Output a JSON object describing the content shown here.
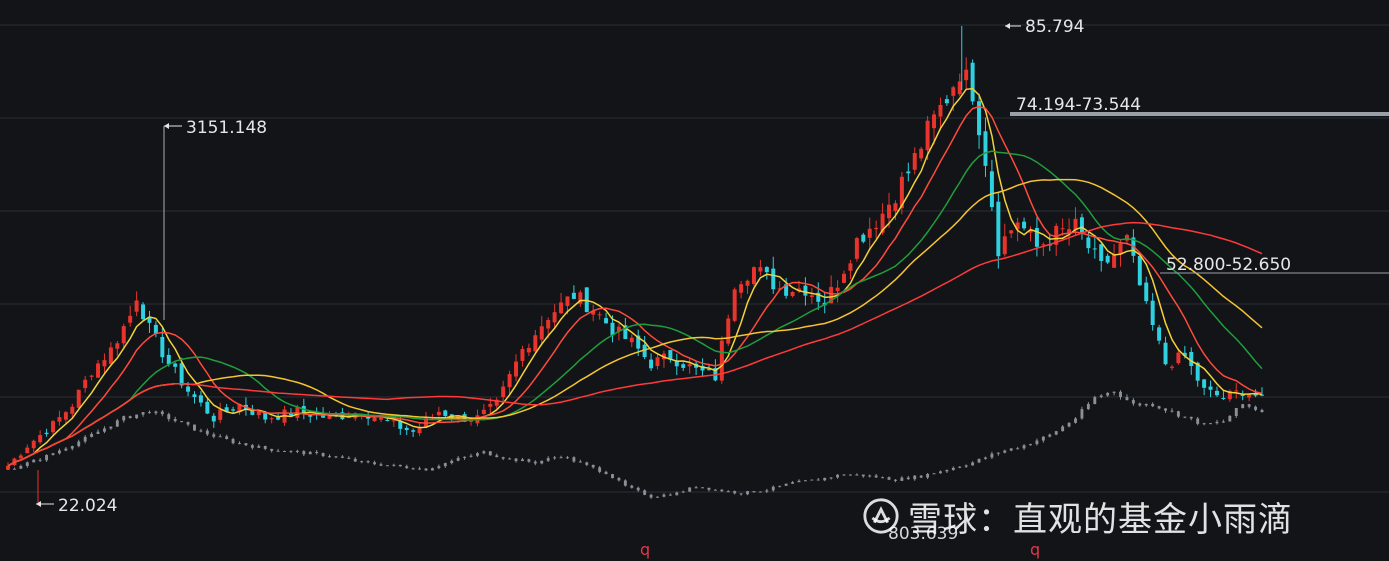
{
  "chart_data": {
    "type": "candlestick",
    "title": "",
    "xlabel": "",
    "ylabel": "",
    "grid": true,
    "colors": {
      "background": "#121418",
      "grid": "#2a2f36",
      "up": "#e8342c",
      "down": "#2fd0e0",
      "ma_yellow": "#f2d33a",
      "ma_red1": "#ff4b3c",
      "ma_green": "#1f9e3c",
      "ma_gold": "#f5c431",
      "ma_red2": "#ff3a3a",
      "benchmark": "#8a8f98",
      "label": "#e6e6e6",
      "marker": "#e6354a"
    },
    "annotations": {
      "high_label": "85.794",
      "low_label": "22.024",
      "bench_high_label": "3151.148",
      "bench_low_label": "803.639",
      "resistance_label_1": "74.194-73.544",
      "resistance_label_2": "52.800-52.650",
      "marker_1": "q",
      "marker_2": "q"
    },
    "anchors": [
      [
        0,
        23
      ],
      [
        3,
        26
      ],
      [
        7,
        29
      ],
      [
        10,
        32
      ],
      [
        13,
        37
      ],
      [
        16,
        40
      ],
      [
        19,
        45
      ],
      [
        20,
        48
      ],
      [
        22,
        43
      ],
      [
        25,
        38
      ],
      [
        28,
        34
      ],
      [
        32,
        30
      ],
      [
        36,
        32
      ],
      [
        40,
        30
      ],
      [
        45,
        31
      ],
      [
        50,
        30
      ],
      [
        55,
        31
      ],
      [
        60,
        29
      ],
      [
        63,
        28
      ],
      [
        67,
        31
      ],
      [
        70,
        30
      ],
      [
        73,
        30
      ],
      [
        76,
        32
      ],
      [
        80,
        40
      ],
      [
        84,
        45
      ],
      [
        88,
        48
      ],
      [
        91,
        46
      ],
      [
        94,
        43
      ],
      [
        97,
        41
      ],
      [
        100,
        38
      ],
      [
        103,
        39
      ],
      [
        107,
        37
      ],
      [
        110,
        36
      ],
      [
        113,
        50
      ],
      [
        116,
        52
      ],
      [
        120,
        49
      ],
      [
        124,
        49
      ],
      [
        127,
        47
      ],
      [
        129,
        50
      ],
      [
        132,
        56
      ],
      [
        136,
        60
      ],
      [
        140,
        66
      ],
      [
        143,
        72
      ],
      [
        146,
        77
      ],
      [
        148,
        81
      ],
      [
        150,
        78
      ],
      [
        152,
        68
      ],
      [
        154,
        55
      ],
      [
        157,
        59
      ],
      [
        160,
        55
      ],
      [
        163,
        57
      ],
      [
        166,
        58
      ],
      [
        170,
        52
      ],
      [
        174,
        56
      ],
      [
        177,
        46
      ],
      [
        180,
        38
      ],
      [
        183,
        39
      ],
      [
        186,
        34
      ],
      [
        189,
        33
      ],
      [
        192,
        34
      ],
      [
        195,
        33
      ]
    ],
    "benchmark": {
      "label": "",
      "anchors": [
        [
          0,
          22.5
        ],
        [
          5,
          24
        ],
        [
          12,
          27
        ],
        [
          18,
          30
        ],
        [
          22,
          31
        ],
        [
          25,
          30
        ],
        [
          30,
          28
        ],
        [
          35,
          26.5
        ],
        [
          40,
          25.5
        ],
        [
          45,
          25
        ],
        [
          50,
          24.5
        ],
        [
          55,
          23.5
        ],
        [
          60,
          23
        ],
        [
          65,
          22.5
        ],
        [
          70,
          24
        ],
        [
          74,
          25
        ],
        [
          78,
          24
        ],
        [
          82,
          23.5
        ],
        [
          86,
          24.5
        ],
        [
          90,
          23
        ],
        [
          93,
          22
        ],
        [
          96,
          20
        ],
        [
          100,
          18.5
        ],
        [
          104,
          19
        ],
        [
          107,
          20
        ],
        [
          110,
          19.5
        ],
        [
          114,
          19
        ],
        [
          118,
          19.5
        ],
        [
          122,
          20.5
        ],
        [
          126,
          21
        ],
        [
          130,
          21.8
        ],
        [
          134,
          21.5
        ],
        [
          138,
          21
        ],
        [
          142,
          21.5
        ],
        [
          146,
          22.5
        ],
        [
          150,
          23.5
        ],
        [
          154,
          25
        ],
        [
          158,
          26
        ],
        [
          162,
          27.5
        ],
        [
          166,
          30
        ],
        [
          169,
          33
        ],
        [
          172,
          34
        ],
        [
          175,
          32
        ],
        [
          178,
          32
        ],
        [
          182,
          30.5
        ],
        [
          186,
          29
        ],
        [
          189,
          29.5
        ],
        [
          192,
          32
        ],
        [
          195,
          31
        ]
      ]
    },
    "moving_averages": [
      {
        "period": 5,
        "color": "#f2d33a"
      },
      {
        "period": 10,
        "color": "#ff4b3c"
      },
      {
        "period": 20,
        "color": "#1f9e3c"
      },
      {
        "period": 30,
        "color": "#f5c431"
      },
      {
        "period": 60,
        "color": "#ff3a3a"
      }
    ],
    "ylim": [
      18,
      88
    ]
  }
}
